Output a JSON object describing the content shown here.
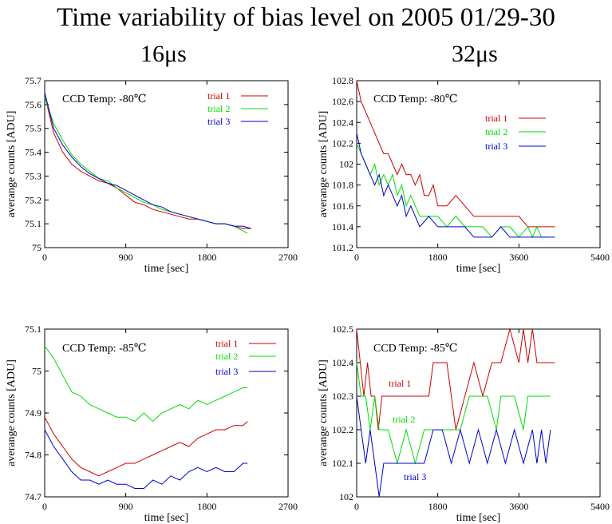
{
  "header": {
    "title": "Time variability of bias level on 2005 01/29-30",
    "col_left": "16μs",
    "col_right": "32μs"
  },
  "colors": {
    "trial 1": "#cc0000",
    "trial 2": "#00dd00",
    "trial 3": "#0000cc"
  },
  "chart_data": [
    {
      "id": "p16-80",
      "type": "line",
      "annotation": "CCD Temp: -80℃",
      "xlabel": "time [sec]",
      "ylabel": "averange counts [ADU]",
      "xlim": [
        0,
        2700
      ],
      "ylim": [
        75,
        75.7
      ],
      "xticks": [
        0,
        900,
        1800,
        2700
      ],
      "yticks": [
        75,
        75.1,
        75.2,
        75.3,
        75.4,
        75.5,
        75.6,
        75.7
      ],
      "legend": "top-right",
      "series": [
        {
          "name": "trial 1",
          "x": [
            0,
            100,
            200,
            300,
            400,
            500,
            600,
            700,
            800,
            900,
            1000,
            1100,
            1200,
            1300,
            1400,
            1500,
            1600,
            1700,
            1800,
            1900,
            2000,
            2100,
            2200,
            2290
          ],
          "y": [
            75.64,
            75.48,
            75.4,
            75.35,
            75.32,
            75.3,
            75.28,
            75.27,
            75.25,
            75.22,
            75.19,
            75.18,
            75.16,
            75.15,
            75.14,
            75.13,
            75.12,
            75.12,
            75.11,
            75.1,
            75.1,
            75.09,
            75.08,
            75.08
          ]
        },
        {
          "name": "trial 2",
          "x": [
            0,
            100,
            200,
            300,
            400,
            500,
            600,
            700,
            800,
            900,
            1000,
            1100,
            1200,
            1300,
            1400,
            1500,
            1600,
            1700,
            1800,
            1900,
            2000,
            2100,
            2200,
            2250
          ],
          "y": [
            75.63,
            75.52,
            75.45,
            75.39,
            75.35,
            75.32,
            75.29,
            75.28,
            75.25,
            75.23,
            75.21,
            75.19,
            75.18,
            75.16,
            75.15,
            75.14,
            75.13,
            75.12,
            75.11,
            75.1,
            75.1,
            75.09,
            75.07,
            75.06
          ]
        },
        {
          "name": "trial 3",
          "x": [
            0,
            100,
            200,
            300,
            400,
            500,
            600,
            700,
            800,
            900,
            1000,
            1100,
            1200,
            1300,
            1400,
            1500,
            1600,
            1700,
            1800,
            1900,
            2000,
            2100,
            2200,
            2290
          ],
          "y": [
            75.65,
            75.5,
            75.43,
            75.38,
            75.34,
            75.31,
            75.29,
            75.27,
            75.26,
            75.24,
            75.22,
            75.2,
            75.18,
            75.17,
            75.15,
            75.14,
            75.13,
            75.12,
            75.11,
            75.1,
            75.1,
            75.09,
            75.09,
            75.08
          ]
        }
      ]
    },
    {
      "id": "p32-80",
      "type": "line",
      "annotation": "CCD Temp: -80℃",
      "xlabel": "time [sec]",
      "ylabel": "averange counts [ADU]",
      "xlim": [
        0,
        5400
      ],
      "ylim": [
        101.2,
        102.8
      ],
      "xticks": [
        0,
        1800,
        3600,
        5400
      ],
      "yticks": [
        101.2,
        101.4,
        101.6,
        101.8,
        102,
        102.2,
        102.4,
        102.6,
        102.8
      ],
      "legend": "top-right",
      "series": [
        {
          "name": "trial 1",
          "x": [
            0,
            100,
            200,
            300,
            400,
            500,
            600,
            700,
            800,
            900,
            1000,
            1100,
            1200,
            1300,
            1400,
            1500,
            1600,
            1700,
            1800,
            1900,
            2000,
            2200,
            2400,
            2600,
            2800,
            3000,
            3200,
            3400,
            3600,
            3800,
            4000,
            4200,
            4400
          ],
          "y": [
            102.8,
            102.6,
            102.5,
            102.4,
            102.3,
            102.2,
            102.1,
            102.1,
            102,
            101.9,
            102,
            101.9,
            101.9,
            101.8,
            101.9,
            101.7,
            101.7,
            101.8,
            101.6,
            101.6,
            101.6,
            101.7,
            101.6,
            101.5,
            101.5,
            101.5,
            101.5,
            101.5,
            101.5,
            101.4,
            101.4,
            101.4,
            101.4
          ]
        },
        {
          "name": "trial 2",
          "x": [
            0,
            100,
            200,
            300,
            400,
            500,
            600,
            700,
            800,
            900,
            1000,
            1100,
            1200,
            1400,
            1600,
            1800,
            2000,
            2200,
            2400,
            2600,
            2800,
            3000,
            3200,
            3400,
            3600,
            3800,
            3900,
            4000,
            4100,
            4200
          ],
          "y": [
            102.2,
            102.1,
            102,
            101.9,
            102,
            101.8,
            101.9,
            101.8,
            101.9,
            101.7,
            101.8,
            101.6,
            101.7,
            101.5,
            101.5,
            101.5,
            101.4,
            101.5,
            101.4,
            101.4,
            101.4,
            101.3,
            101.4,
            101.4,
            101.3,
            101.4,
            101.3,
            101.4,
            101.3,
            101.3
          ]
        },
        {
          "name": "trial 3",
          "x": [
            0,
            100,
            200,
            300,
            400,
            500,
            600,
            700,
            800,
            900,
            1000,
            1100,
            1200,
            1400,
            1600,
            1800,
            2000,
            2200,
            2400,
            2600,
            2800,
            3000,
            3200,
            3400,
            3600,
            3800,
            4000,
            4200,
            4400
          ],
          "y": [
            102.3,
            102.1,
            102,
            101.9,
            101.8,
            101.9,
            101.7,
            101.8,
            101.7,
            101.6,
            101.7,
            101.5,
            101.6,
            101.4,
            101.5,
            101.4,
            101.4,
            101.4,
            101.4,
            101.3,
            101.3,
            101.3,
            101.4,
            101.3,
            101.3,
            101.3,
            101.3,
            101.3,
            101.3
          ]
        }
      ]
    },
    {
      "id": "p16-85",
      "type": "line",
      "annotation": "CCD Temp: -85℃",
      "xlabel": "time [sec]",
      "ylabel": "averange counts [ADU]",
      "xlim": [
        0,
        2700
      ],
      "ylim": [
        74.7,
        75.1
      ],
      "xticks": [
        0,
        900,
        1800,
        2700
      ],
      "yticks": [
        74.7,
        74.8,
        74.9,
        75,
        75.1
      ],
      "legend": "top-right",
      "series": [
        {
          "name": "trial 1",
          "x": [
            0,
            100,
            200,
            300,
            400,
            500,
            600,
            700,
            800,
            900,
            1000,
            1100,
            1200,
            1300,
            1400,
            1500,
            1600,
            1700,
            1800,
            1900,
            2000,
            2100,
            2200,
            2250
          ],
          "y": [
            74.89,
            74.85,
            74.82,
            74.79,
            74.77,
            74.76,
            74.75,
            74.76,
            74.77,
            74.78,
            74.78,
            74.79,
            74.8,
            74.81,
            74.82,
            74.83,
            74.82,
            74.84,
            74.85,
            74.86,
            74.86,
            74.87,
            74.87,
            74.88
          ]
        },
        {
          "name": "trial 2",
          "x": [
            0,
            100,
            200,
            300,
            400,
            500,
            600,
            700,
            800,
            900,
            1000,
            1100,
            1200,
            1300,
            1400,
            1500,
            1600,
            1700,
            1800,
            1900,
            2000,
            2100,
            2200,
            2250
          ],
          "y": [
            75.06,
            75.03,
            74.99,
            74.95,
            74.94,
            74.92,
            74.91,
            74.9,
            74.89,
            74.89,
            74.88,
            74.9,
            74.88,
            74.9,
            74.91,
            74.92,
            74.91,
            74.93,
            74.92,
            74.93,
            74.94,
            74.95,
            74.96,
            74.96
          ]
        },
        {
          "name": "trial 3",
          "x": [
            0,
            100,
            200,
            300,
            400,
            500,
            600,
            700,
            800,
            900,
            1000,
            1100,
            1200,
            1300,
            1400,
            1500,
            1600,
            1700,
            1800,
            1900,
            2000,
            2100,
            2200,
            2250
          ],
          "y": [
            74.86,
            74.82,
            74.79,
            74.76,
            74.74,
            74.74,
            74.73,
            74.74,
            74.73,
            74.73,
            74.72,
            74.72,
            74.74,
            74.73,
            74.75,
            74.74,
            74.76,
            74.77,
            74.76,
            74.77,
            74.76,
            74.76,
            74.78,
            74.78
          ]
        }
      ]
    },
    {
      "id": "p32-85",
      "type": "line",
      "annotation": "CCD Temp: -85℃",
      "xlabel": "time [sec]",
      "ylabel": "averange counts [ADU]",
      "xlim": [
        0,
        5400
      ],
      "ylim": [
        102,
        102.5
      ],
      "xticks": [
        0,
        1800,
        3600,
        5400
      ],
      "yticks": [
        102,
        102.1,
        102.2,
        102.3,
        102.4,
        102.5
      ],
      "legend": "inline",
      "series": [
        {
          "name": "trial 1",
          "x": [
            0,
            80,
            160,
            240,
            320,
            400,
            480,
            560,
            640,
            1600,
            1700,
            1800,
            2000,
            2200,
            2400,
            2600,
            2800,
            3000,
            3200,
            3400,
            3600,
            3700,
            3800,
            3900,
            4000,
            4100,
            4200,
            4300,
            4400
          ],
          "y": [
            102.5,
            102.4,
            102.3,
            102.4,
            102.3,
            102.3,
            102.2,
            102.3,
            102.3,
            102.3,
            102.4,
            102.4,
            102.4,
            102.2,
            102.3,
            102.4,
            102.3,
            102.4,
            102.4,
            102.5,
            102.4,
            102.5,
            102.4,
            102.5,
            102.4,
            102.4,
            102.4,
            102.4,
            102.4
          ]
        },
        {
          "name": "trial 2",
          "x": [
            0,
            100,
            200,
            300,
            400,
            500,
            700,
            900,
            1100,
            1300,
            1500,
            1700,
            1900,
            2100,
            2300,
            2500,
            2700,
            2900,
            3100,
            3200,
            3300,
            3500,
            3700,
            3800,
            3900,
            4000,
            4100,
            4200,
            4300
          ],
          "y": [
            102.4,
            102.3,
            102.3,
            102.2,
            102.3,
            102.2,
            102.2,
            102.1,
            102.2,
            102.1,
            102.2,
            102.2,
            102.2,
            102.2,
            102.2,
            102.3,
            102.3,
            102.3,
            102.2,
            102.3,
            102.3,
            102.3,
            102.2,
            102.3,
            102.3,
            102.3,
            102.3,
            102.3,
            102.3
          ]
        },
        {
          "name": "trial 3",
          "x": [
            0,
            100,
            200,
            300,
            400,
            500,
            600,
            700,
            900,
            1100,
            1300,
            1500,
            1700,
            1900,
            2100,
            2300,
            2500,
            2700,
            2900,
            3100,
            3300,
            3500,
            3700,
            3900,
            4000,
            4100,
            4200,
            4300
          ],
          "y": [
            102.3,
            102.2,
            102.1,
            102.2,
            102.1,
            102,
            102.1,
            102.1,
            102.1,
            102.1,
            102.1,
            102.1,
            102.2,
            102.2,
            102.1,
            102.2,
            102.1,
            102.2,
            102.1,
            102.2,
            102.1,
            102.2,
            102.1,
            102.2,
            102.1,
            102.2,
            102.1,
            102.2
          ]
        }
      ]
    }
  ]
}
